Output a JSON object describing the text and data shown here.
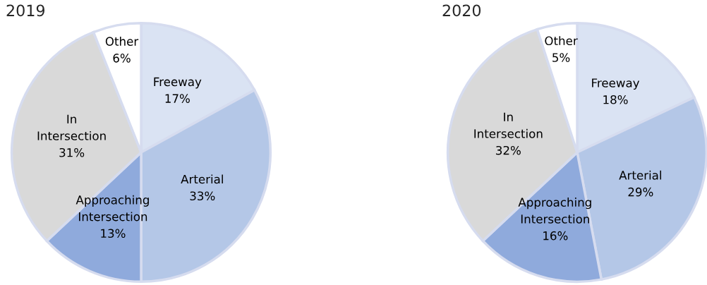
{
  "chart_data": [
    {
      "type": "pie",
      "title": "2019",
      "categories": [
        "Freeway",
        "Arterial",
        "Approaching Intersection",
        "In Intersection",
        "Other"
      ],
      "values": [
        17,
        33,
        13,
        31,
        6
      ],
      "colors": [
        "#dae3f3",
        "#b4c7e7",
        "#8faadc",
        "#d9d9d9",
        "#ffffff"
      ],
      "value_labels": [
        "17%",
        "33%",
        "13%",
        "31%",
        "6%"
      ]
    },
    {
      "type": "pie",
      "title": "2020",
      "categories": [
        "Freeway",
        "Arterial",
        "Approaching Intersection",
        "In Intersection",
        "Other"
      ],
      "values": [
        18,
        29,
        16,
        32,
        5
      ],
      "colors": [
        "#dae3f3",
        "#b4c7e7",
        "#8faadc",
        "#d9d9d9",
        "#ffffff"
      ],
      "value_labels": [
        "18%",
        "29%",
        "16%",
        "32%",
        "5%"
      ]
    }
  ]
}
